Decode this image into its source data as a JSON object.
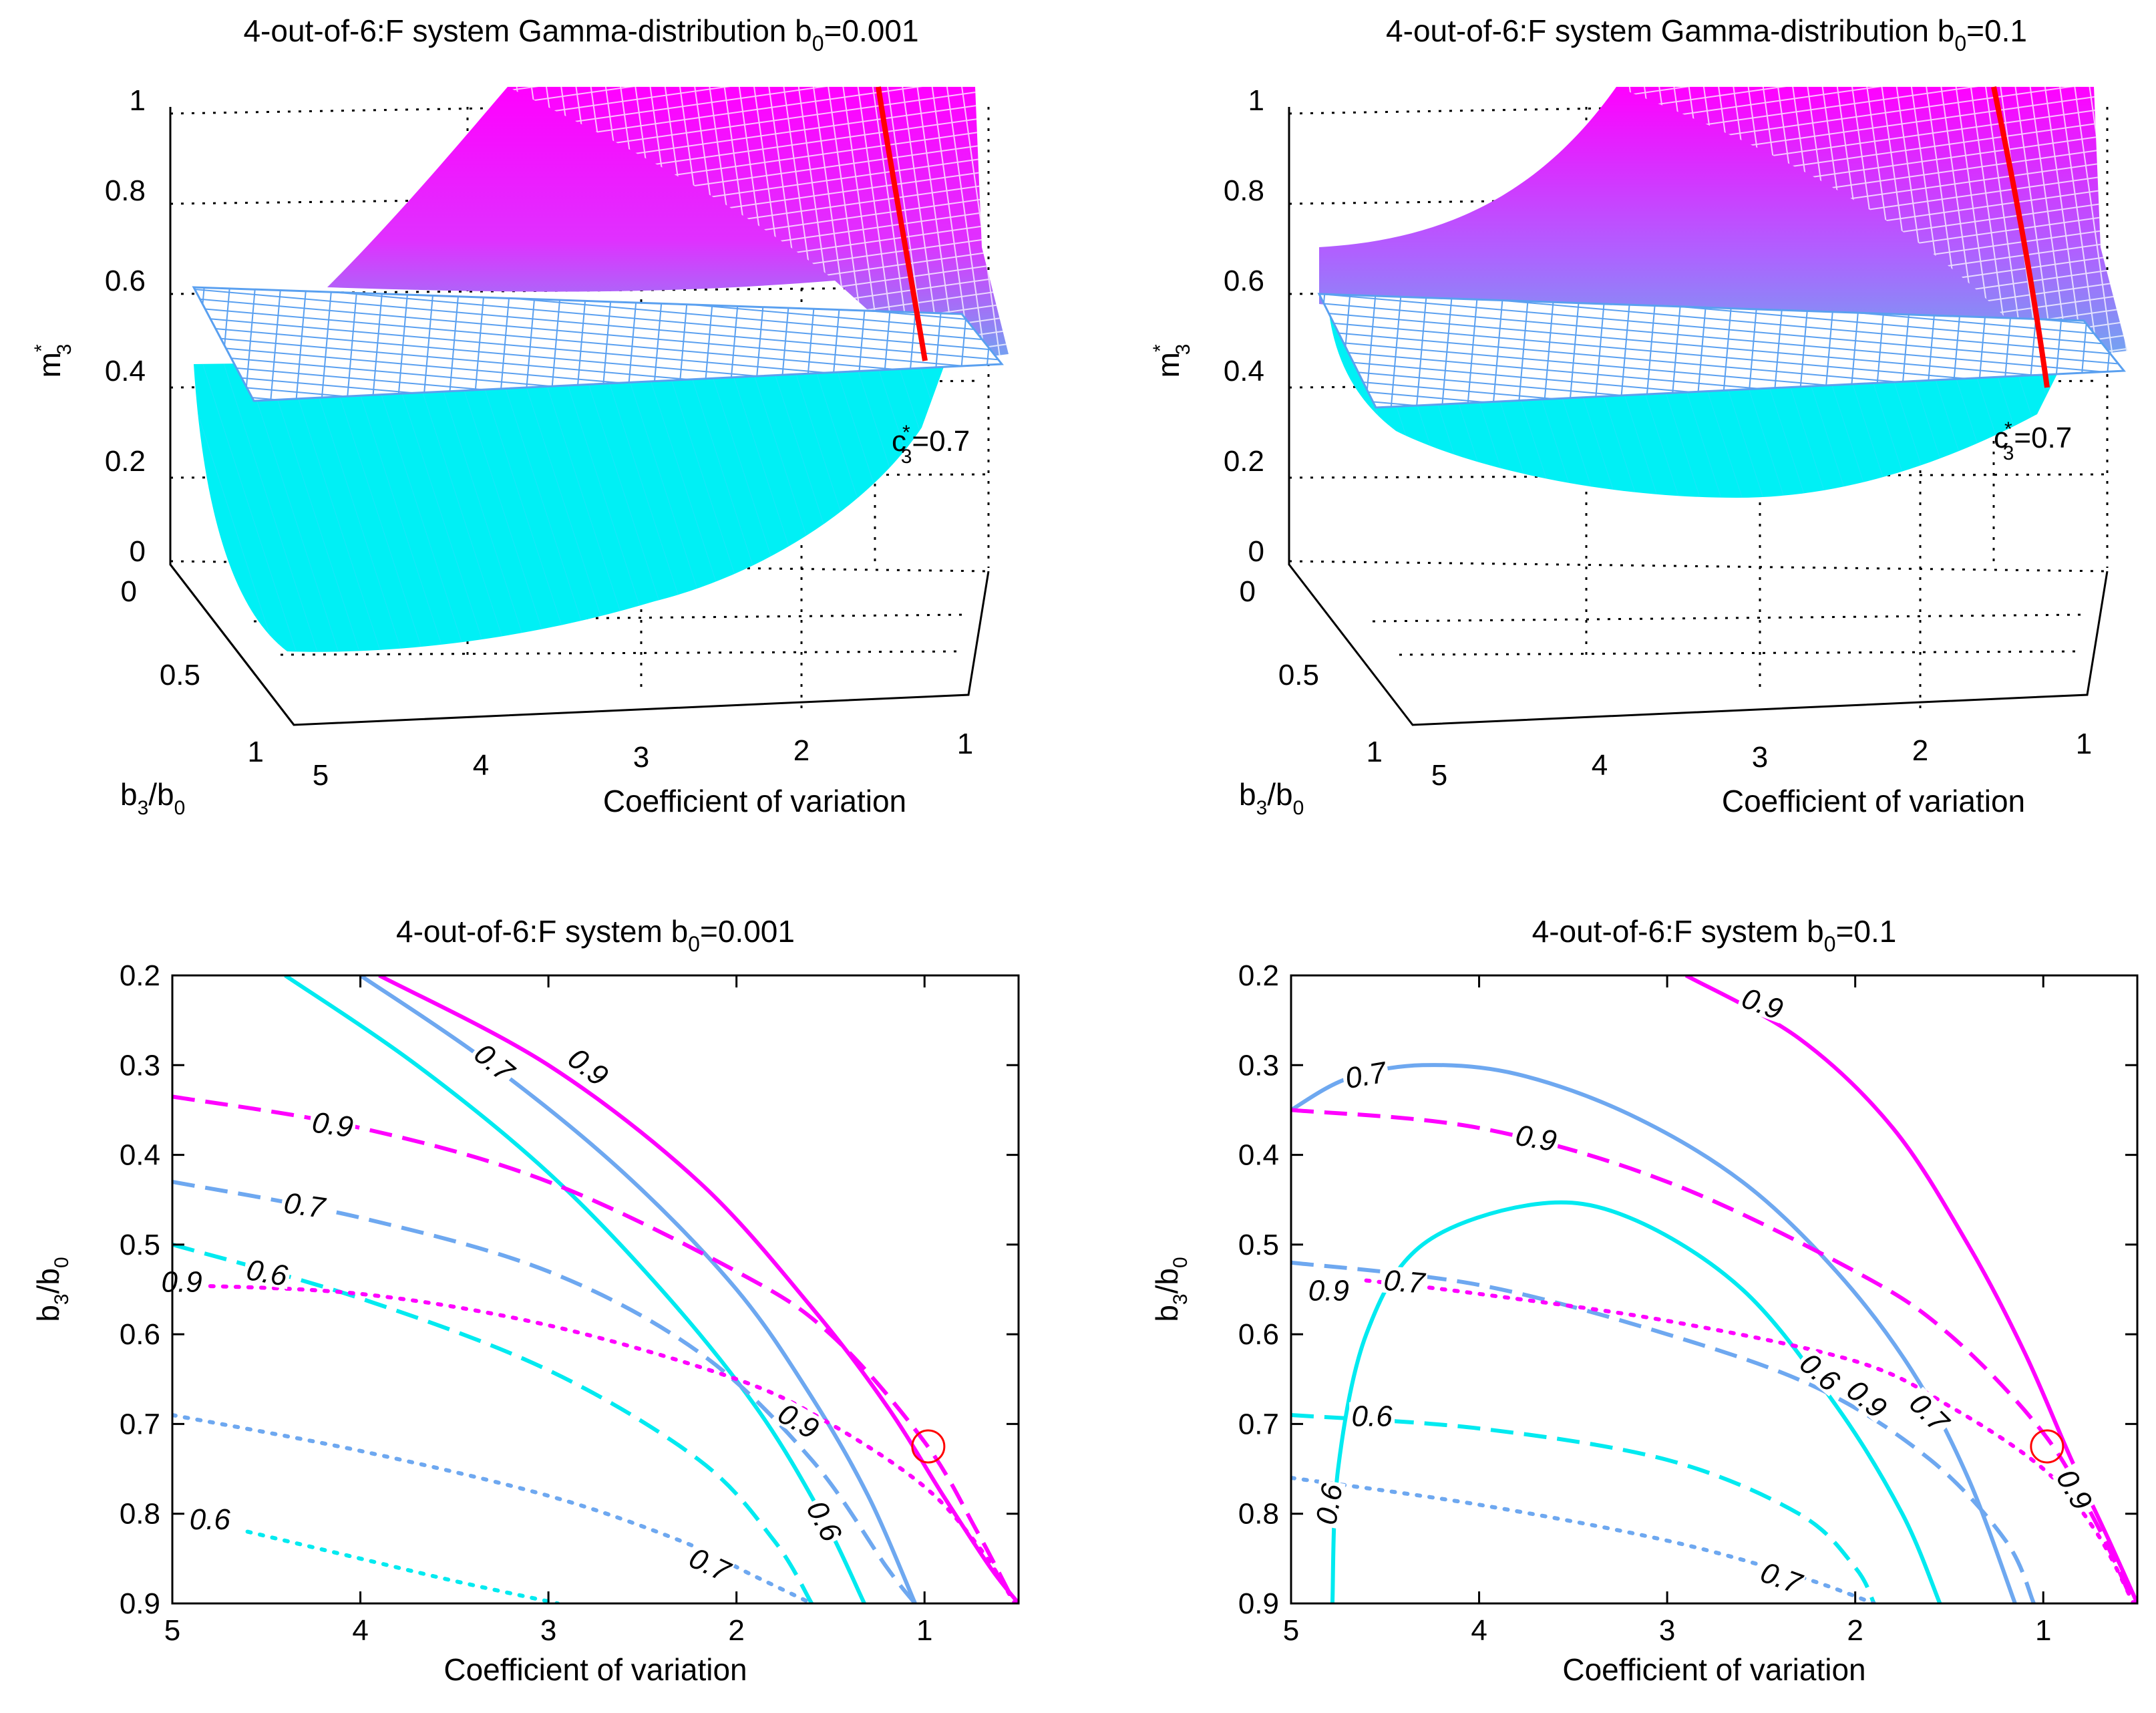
{
  "colors": {
    "magenta": "#ff00ff",
    "light_blue": "#6ea8f0",
    "cyan": "#00eaf0",
    "red": "#ff0000",
    "grid": "#000000"
  },
  "chart_data": [
    {
      "type": "surface3d",
      "title": "4-out-of-6:F system Gamma-distribution b",
      "title_sub": "0",
      "title_end": "=0.001",
      "zlabel": "m",
      "zlabel_sub": "3",
      "zlabel_sup": "*",
      "xlabel": "Coefficient of variation",
      "ylabel": "b",
      "ylabel_sub1": "3",
      "ylabel_mid": "/b",
      "ylabel_sub2": "0",
      "z_ticks": [
        "0",
        "0.2",
        "0.4",
        "0.6",
        "0.8",
        "1"
      ],
      "x_ticks": [
        "5",
        "4",
        "3",
        "2",
        "1"
      ],
      "y_ticks": [
        "0",
        "0.5",
        "1"
      ],
      "annotation": "c",
      "annotation_sub": "3",
      "annotation_sup": "*",
      "annotation_end": "=0.7",
      "xlim": [
        0.5,
        5
      ],
      "ylim": [
        0,
        1
      ],
      "zlim": [
        0,
        1
      ],
      "plane_level": 0.7
    },
    {
      "type": "surface3d",
      "title": "4-out-of-6:F system Gamma-distribution b",
      "title_sub": "0",
      "title_end": "=0.1",
      "zlabel": "m",
      "zlabel_sub": "3",
      "zlabel_sup": "*",
      "xlabel": "Coefficient of variation",
      "ylabel": "b",
      "ylabel_sub1": "3",
      "ylabel_mid": "/b",
      "ylabel_sub2": "0",
      "z_ticks": [
        "0",
        "0.2",
        "0.4",
        "0.6",
        "0.8",
        "1"
      ],
      "x_ticks": [
        "5",
        "4",
        "3",
        "2",
        "1"
      ],
      "y_ticks": [
        "0",
        "0.5",
        "1"
      ],
      "annotation": "c",
      "annotation_sub": "3",
      "annotation_sup": "*",
      "annotation_end": "=0.7",
      "xlim": [
        0.5,
        5
      ],
      "ylim": [
        0,
        1
      ],
      "zlim": [
        0,
        1
      ],
      "plane_level": 0.7
    },
    {
      "type": "contour",
      "title": "4-out-of-6:F system b",
      "title_sub": "0",
      "title_end": "=0.001",
      "xlabel": "Coefficient of variation",
      "ylabel": "b",
      "ylabel_sub1": "3",
      "ylabel_mid": "/b",
      "ylabel_sub2": "0",
      "xlim": [
        0.5,
        5
      ],
      "ylim": [
        0.2,
        0.9
      ],
      "x_ticks": [
        5,
        4,
        3,
        2,
        1
      ],
      "y_ticks": [
        0.2,
        0.3,
        0.4,
        0.5,
        0.6,
        0.7,
        0.8,
        0.9
      ],
      "x_reversed": true,
      "y_reversed": true,
      "marker": {
        "x": 0.98,
        "y": 0.725
      },
      "series": [
        {
          "name": "magenta-solid",
          "color": "magenta",
          "style": "solid",
          "points": [
            [
              3.9,
              0.2
            ],
            [
              3.0,
              0.3
            ],
            [
              2.2,
              0.43
            ],
            [
              1.6,
              0.57
            ],
            [
              1.2,
              0.68
            ],
            [
              0.9,
              0.78
            ],
            [
              0.65,
              0.86
            ],
            [
              0.5,
              0.9
            ]
          ]
        },
        {
          "name": "blue-solid",
          "color": "light_blue",
          "style": "solid",
          "points": [
            [
              4.0,
              0.2
            ],
            [
              3.3,
              0.3
            ],
            [
              2.6,
              0.42
            ],
            [
              2.0,
              0.55
            ],
            [
              1.6,
              0.67
            ],
            [
              1.3,
              0.78
            ],
            [
              1.05,
              0.9
            ]
          ]
        },
        {
          "name": "cyan-solid",
          "color": "cyan",
          "style": "solid",
          "points": [
            [
              4.4,
              0.2
            ],
            [
              3.7,
              0.3
            ],
            [
              3.0,
              0.42
            ],
            [
              2.4,
              0.55
            ],
            [
              1.9,
              0.68
            ],
            [
              1.55,
              0.8
            ],
            [
              1.32,
              0.9
            ]
          ]
        },
        {
          "name": "magenta-dash",
          "color": "magenta",
          "style": "dash",
          "points": [
            [
              5,
              0.335
            ],
            [
              4,
              0.37
            ],
            [
              3,
              0.43
            ],
            [
              2,
              0.53
            ],
            [
              1.5,
              0.6
            ],
            [
              1.0,
              0.72
            ],
            [
              0.72,
              0.82
            ],
            [
              0.52,
              0.9
            ]
          ]
        },
        {
          "name": "blue-dash",
          "color": "light_blue",
          "style": "dash",
          "points": [
            [
              5,
              0.43
            ],
            [
              4,
              0.47
            ],
            [
              3,
              0.53
            ],
            [
              2.2,
              0.62
            ],
            [
              1.6,
              0.74
            ],
            [
              1.2,
              0.86
            ],
            [
              1.05,
              0.9
            ]
          ]
        },
        {
          "name": "cyan-dash",
          "color": "cyan",
          "style": "dash",
          "points": [
            [
              5,
              0.5
            ],
            [
              4,
              0.56
            ],
            [
              3,
              0.64
            ],
            [
              2.2,
              0.74
            ],
            [
              1.8,
              0.83
            ],
            [
              1.6,
              0.9
            ]
          ]
        },
        {
          "name": "magenta-dot",
          "color": "magenta",
          "style": "dot",
          "points": [
            [
              5,
              0.545
            ],
            [
              4,
              0.555
            ],
            [
              3,
              0.59
            ],
            [
              2,
              0.65
            ],
            [
              1.5,
              0.7
            ],
            [
              1.0,
              0.77
            ],
            [
              0.7,
              0.84
            ],
            [
              0.52,
              0.9
            ]
          ]
        },
        {
          "name": "blue-dot",
          "color": "light_blue",
          "style": "dot",
          "points": [
            [
              5,
              0.69
            ],
            [
              4,
              0.73
            ],
            [
              3,
              0.78
            ],
            [
              2.3,
              0.83
            ],
            [
              1.9,
              0.87
            ],
            [
              1.6,
              0.9
            ]
          ]
        },
        {
          "name": "cyan-dot",
          "color": "cyan",
          "style": "dot",
          "points": [
            [
              4.6,
              0.82
            ],
            [
              4,
              0.85
            ],
            [
              3.5,
              0.875
            ],
            [
              2.95,
              0.9
            ]
          ]
        }
      ],
      "labels": [
        {
          "text": "0.9",
          "x": 2.8,
          "y": 0.305,
          "rot": 38
        },
        {
          "text": "0.7",
          "x": 3.3,
          "y": 0.3,
          "rot": 40
        },
        {
          "text": "0.9",
          "x": 4.15,
          "y": 0.37,
          "rot": 8
        },
        {
          "text": "0.7",
          "x": 4.3,
          "y": 0.46,
          "rot": 8
        },
        {
          "text": "0.9",
          "x": 4.95,
          "y": 0.545,
          "rot": 0
        },
        {
          "text": "0.6",
          "x": 4.5,
          "y": 0.535,
          "rot": 10
        },
        {
          "text": "0.9",
          "x": 1.68,
          "y": 0.7,
          "rot": 30
        },
        {
          "text": "0.6",
          "x": 1.55,
          "y": 0.81,
          "rot": 62
        },
        {
          "text": "0.6",
          "x": 4.8,
          "y": 0.81,
          "rot": 0
        },
        {
          "text": "0.7",
          "x": 2.15,
          "y": 0.86,
          "rot": 25
        }
      ]
    },
    {
      "type": "contour",
      "title": "4-out-of-6:F system b",
      "title_sub": "0",
      "title_end": "=0.1",
      "xlabel": "Coefficient of variation",
      "ylabel": "b",
      "ylabel_sub1": "3",
      "ylabel_mid": "/b",
      "ylabel_sub2": "0",
      "xlim": [
        0.5,
        5
      ],
      "ylim": [
        0.2,
        0.9
      ],
      "x_ticks": [
        5,
        4,
        3,
        2,
        1
      ],
      "y_ticks": [
        0.2,
        0.3,
        0.4,
        0.5,
        0.6,
        0.7,
        0.8,
        0.9
      ],
      "x_reversed": true,
      "y_reversed": true,
      "marker": {
        "x": 0.98,
        "y": 0.725
      },
      "series": [
        {
          "name": "magenta-solid",
          "color": "magenta",
          "style": "solid",
          "points": [
            [
              2.9,
              0.2
            ],
            [
              2.3,
              0.27
            ],
            [
              1.8,
              0.37
            ],
            [
              1.4,
              0.5
            ],
            [
              1.1,
              0.62
            ],
            [
              0.85,
              0.74
            ],
            [
              0.65,
              0.83
            ],
            [
              0.5,
              0.9
            ]
          ]
        },
        {
          "name": "blue-arch",
          "color": "light_blue",
          "style": "solid",
          "points": [
            [
              5,
              0.35
            ],
            [
              4.7,
              0.315
            ],
            [
              4.3,
              0.3
            ],
            [
              3.8,
              0.31
            ],
            [
              3.2,
              0.355
            ],
            [
              2.6,
              0.43
            ],
            [
              2.1,
              0.53
            ],
            [
              1.7,
              0.64
            ],
            [
              1.4,
              0.76
            ],
            [
              1.15,
              0.9
            ]
          ]
        },
        {
          "name": "cyan-arch",
          "color": "cyan",
          "style": "solid",
          "points": [
            [
              4.78,
              0.9
            ],
            [
              4.75,
              0.75
            ],
            [
              4.6,
              0.6
            ],
            [
              4.3,
              0.5
            ],
            [
              3.7,
              0.455
            ],
            [
              3.2,
              0.47
            ],
            [
              2.6,
              0.55
            ],
            [
              2.1,
              0.68
            ],
            [
              1.75,
              0.8
            ],
            [
              1.55,
              0.9
            ]
          ]
        },
        {
          "name": "magenta-dash",
          "color": "magenta",
          "style": "dash",
          "points": [
            [
              5,
              0.35
            ],
            [
              4,
              0.37
            ],
            [
              3,
              0.43
            ],
            [
              2,
              0.53
            ],
            [
              1.5,
              0.6
            ],
            [
              1.0,
              0.71
            ],
            [
              0.72,
              0.81
            ],
            [
              0.52,
              0.9
            ]
          ]
        },
        {
          "name": "blue-dash",
          "color": "light_blue",
          "style": "dash",
          "points": [
            [
              5,
              0.52
            ],
            [
              4,
              0.545
            ],
            [
              3,
              0.6
            ],
            [
              2.2,
              0.66
            ],
            [
              1.6,
              0.74
            ],
            [
              1.2,
              0.83
            ],
            [
              1.05,
              0.9
            ]
          ]
        },
        {
          "name": "cyan-dash",
          "color": "cyan",
          "style": "dash",
          "points": [
            [
              5,
              0.69
            ],
            [
              4,
              0.705
            ],
            [
              3,
              0.74
            ],
            [
              2.3,
              0.8
            ],
            [
              2.0,
              0.86
            ],
            [
              1.9,
              0.9
            ]
          ]
        },
        {
          "name": "magenta-dot",
          "color": "magenta",
          "style": "dot",
          "points": [
            [
              4.6,
              0.54
            ],
            [
              4,
              0.555
            ],
            [
              3,
              0.585
            ],
            [
              2,
              0.63
            ],
            [
              1.5,
              0.68
            ],
            [
              1.0,
              0.75
            ],
            [
              0.72,
              0.82
            ],
            [
              0.52,
              0.9
            ]
          ]
        },
        {
          "name": "blue-dot",
          "color": "light_blue",
          "style": "dot",
          "points": [
            [
              5,
              0.76
            ],
            [
              4,
              0.79
            ],
            [
              3,
              0.83
            ],
            [
              2.3,
              0.87
            ],
            [
              1.9,
              0.9
            ]
          ]
        }
      ],
      "labels": [
        {
          "text": "0.9",
          "x": 2.5,
          "y": 0.235,
          "rot": 20
        },
        {
          "text": "0.7",
          "x": 4.6,
          "y": 0.315,
          "rot": -10
        },
        {
          "text": "0.9",
          "x": 3.7,
          "y": 0.385,
          "rot": 10
        },
        {
          "text": "0.9",
          "x": 4.8,
          "y": 0.555,
          "rot": 0
        },
        {
          "text": "0.7",
          "x": 4.4,
          "y": 0.545,
          "rot": 5
        },
        {
          "text": "0.6",
          "x": 2.2,
          "y": 0.645,
          "rot": 40
        },
        {
          "text": "0.9",
          "x": 1.95,
          "y": 0.675,
          "rot": 40
        },
        {
          "text": "0.7",
          "x": 1.62,
          "y": 0.69,
          "rot": 45
        },
        {
          "text": "0.6",
          "x": 4.57,
          "y": 0.695,
          "rot": 0
        },
        {
          "text": "0.6",
          "x": 4.78,
          "y": 0.79,
          "rot": -80
        },
        {
          "text": "0.9",
          "x": 0.85,
          "y": 0.775,
          "rot": 60
        },
        {
          "text": "0.7",
          "x": 2.4,
          "y": 0.875,
          "rot": 20
        }
      ]
    }
  ]
}
